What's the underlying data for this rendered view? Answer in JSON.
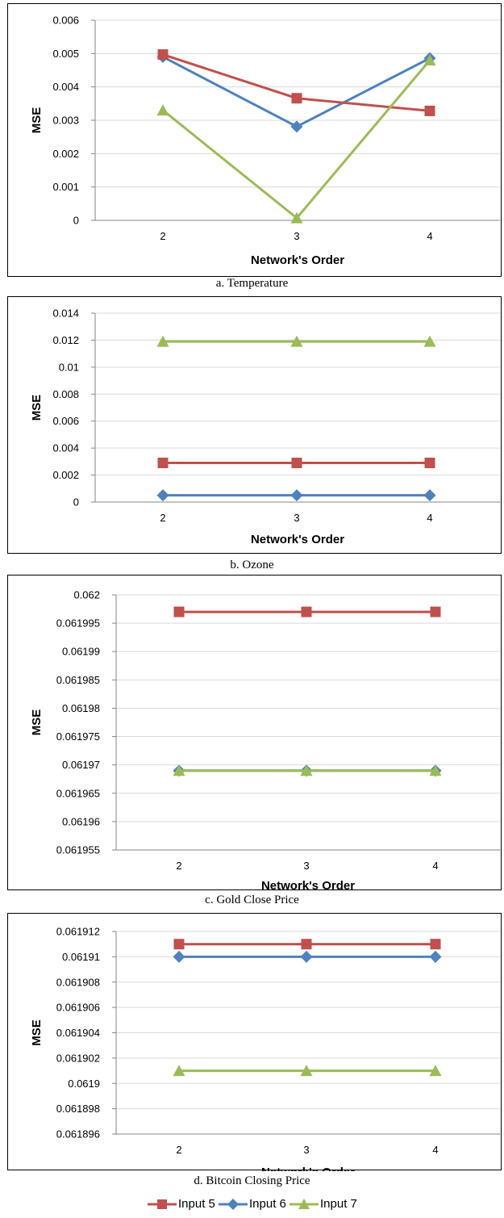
{
  "chart_data": [
    {
      "type": "line",
      "caption": "a. Temperature",
      "xlabel": "Network's Order",
      "ylabel": "MSE",
      "categories": [
        "2",
        "3",
        "4"
      ],
      "ylim": [
        0,
        0.006
      ],
      "yticks": [
        "0",
        "0.001",
        "0.002",
        "0.003",
        "0.004",
        "0.005",
        "0.006"
      ],
      "grid": true,
      "series": [
        {
          "name": "Input 5",
          "values": [
            0.00497,
            0.00366,
            0.00328
          ]
        },
        {
          "name": "Input 6",
          "values": [
            0.0049,
            0.00281,
            0.00486
          ]
        },
        {
          "name": "Input 7",
          "values": [
            0.0033,
            7e-05,
            0.0048
          ]
        }
      ]
    },
    {
      "type": "line",
      "caption": "b. Ozone",
      "xlabel": "Network's Order",
      "ylabel": "MSE",
      "categories": [
        "2",
        "3",
        "4"
      ],
      "ylim": [
        0,
        0.014
      ],
      "yticks": [
        "0",
        "0.002",
        "0.004",
        "0.006",
        "0.008",
        "0.01",
        "0.012",
        "0.014"
      ],
      "grid": true,
      "series": [
        {
          "name": "Input 5",
          "values": [
            0.0029,
            0.0029,
            0.0029
          ]
        },
        {
          "name": "Input 6",
          "values": [
            0.0005,
            0.0005,
            0.0005
          ]
        },
        {
          "name": "Input 7",
          "values": [
            0.0119,
            0.0119,
            0.0119
          ]
        }
      ]
    },
    {
      "type": "line",
      "caption": "c. Gold Close Price",
      "xlabel": "Network's Order",
      "ylabel": "MSE",
      "categories": [
        "2",
        "3",
        "4"
      ],
      "ylim": [
        0.061955,
        0.062
      ],
      "yticks": [
        "0.061955",
        "0.06196",
        "0.061965",
        "0.06197",
        "0.061975",
        "0.06198",
        "0.061985",
        "0.06199",
        "0.061995",
        "0.062"
      ],
      "grid": true,
      "series": [
        {
          "name": "Input 5",
          "values": [
            0.061997,
            0.061997,
            0.061997
          ]
        },
        {
          "name": "Input 6",
          "values": [
            0.061969,
            0.061969,
            0.061969
          ]
        },
        {
          "name": "Input 7",
          "values": [
            0.061969,
            0.061969,
            0.061969
          ]
        }
      ]
    },
    {
      "type": "line",
      "caption": "d. Bitcoin Closing Price",
      "xlabel": "Network's Order",
      "ylabel": "MSE",
      "categories": [
        "2",
        "3",
        "4"
      ],
      "ylim": [
        0.061896,
        0.061912
      ],
      "yticks": [
        "0.061896",
        "0.061898",
        "0.0619",
        "0.061902",
        "0.061904",
        "0.061906",
        "0.061908",
        "0.06191",
        "0.061912"
      ],
      "grid": true,
      "series": [
        {
          "name": "Input 5",
          "values": [
            0.061911,
            0.061911,
            0.061911
          ]
        },
        {
          "name": "Input 6",
          "values": [
            0.06191,
            0.06191,
            0.06191
          ]
        },
        {
          "name": "Input 7",
          "values": [
            0.061901,
            0.061901,
            0.061901
          ]
        }
      ]
    }
  ],
  "legend": [
    {
      "name": "Input 5",
      "color": "#c0504d",
      "marker": "square"
    },
    {
      "name": "Input 6",
      "color": "#4f81bd",
      "marker": "diamond"
    },
    {
      "name": "Input 7",
      "color": "#9bbb59",
      "marker": "triangle"
    }
  ]
}
